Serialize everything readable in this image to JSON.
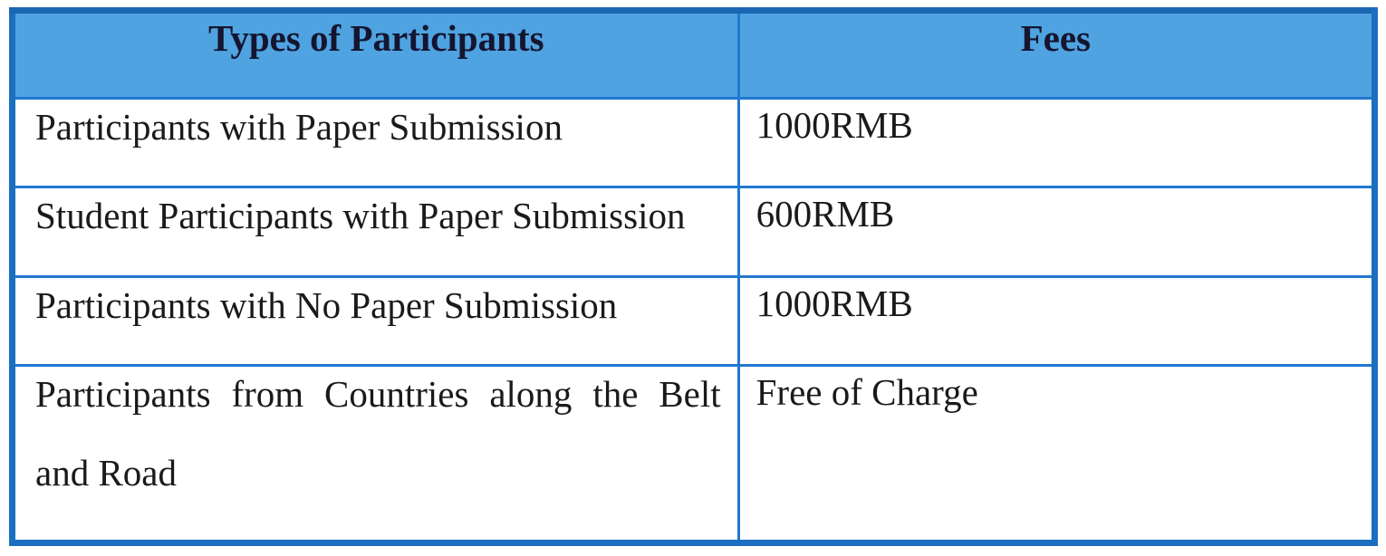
{
  "document": {
    "kind": "conference-registration-fee-table",
    "colors": {
      "outer_border": "#1b6fc0",
      "grid_line": "#2078d0",
      "header_background": "#4fa3e0",
      "header_text": "#151530",
      "body_text": "#1a1a1a",
      "page_background": "#ffffff"
    },
    "table": {
      "headers": [
        {
          "label": "Types of Participants"
        },
        {
          "label": "Fees"
        }
      ],
      "rows": [
        {
          "type_lines": [
            "Participants with Paper Submission"
          ],
          "fee": "1000RMB"
        },
        {
          "type_lines": [
            "Student Participants with Paper Submission"
          ],
          "fee": "600RMB"
        },
        {
          "type_lines": [
            "Participants with No Paper Submission"
          ],
          "fee": "1000RMB"
        },
        {
          "type_lines": [
            "Participants from Countries along the Belt",
            "and Road"
          ],
          "fee": "Free of Charge"
        }
      ]
    }
  }
}
